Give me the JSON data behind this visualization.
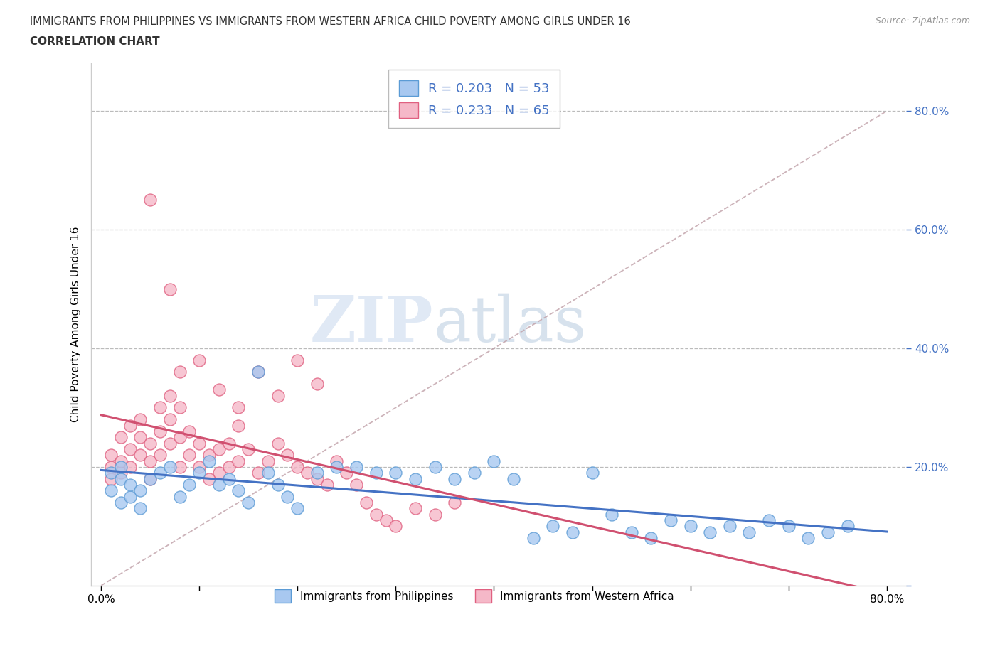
{
  "title_line1": "IMMIGRANTS FROM PHILIPPINES VS IMMIGRANTS FROM WESTERN AFRICA CHILD POVERTY AMONG GIRLS UNDER 16",
  "title_line2": "CORRELATION CHART",
  "source_text": "Source: ZipAtlas.com",
  "ylabel": "Child Poverty Among Girls Under 16",
  "xlim": [
    0.0,
    0.8
  ],
  "ylim": [
    0.0,
    0.88
  ],
  "color_blue": "#A8C8F0",
  "color_pink": "#F5B8C8",
  "color_blue_edge": "#5B9BD5",
  "color_pink_edge": "#E06080",
  "color_trend_blue": "#4472C4",
  "color_trend_pink": "#D05070",
  "color_diag": "#C0A0A8",
  "R_blue": 0.203,
  "N_blue": 53,
  "R_pink": 0.233,
  "N_pink": 65,
  "watermark_zip": "ZIP",
  "watermark_atlas": "atlas",
  "legend_label_blue": "Immigrants from Philippines",
  "legend_label_pink": "Immigrants from Western Africa",
  "blue_x": [
    0.01,
    0.01,
    0.02,
    0.02,
    0.02,
    0.03,
    0.03,
    0.04,
    0.04,
    0.05,
    0.06,
    0.07,
    0.08,
    0.09,
    0.1,
    0.11,
    0.12,
    0.13,
    0.14,
    0.15,
    0.16,
    0.17,
    0.18,
    0.19,
    0.2,
    0.22,
    0.24,
    0.26,
    0.28,
    0.3,
    0.32,
    0.34,
    0.36,
    0.38,
    0.4,
    0.42,
    0.44,
    0.46,
    0.48,
    0.5,
    0.52,
    0.54,
    0.56,
    0.58,
    0.6,
    0.62,
    0.64,
    0.66,
    0.68,
    0.7,
    0.72,
    0.74,
    0.76
  ],
  "blue_y": [
    0.16,
    0.19,
    0.14,
    0.18,
    0.2,
    0.15,
    0.17,
    0.13,
    0.16,
    0.18,
    0.19,
    0.2,
    0.15,
    0.17,
    0.19,
    0.21,
    0.17,
    0.18,
    0.16,
    0.14,
    0.36,
    0.19,
    0.17,
    0.15,
    0.13,
    0.19,
    0.2,
    0.2,
    0.19,
    0.19,
    0.18,
    0.2,
    0.18,
    0.19,
    0.21,
    0.18,
    0.08,
    0.1,
    0.09,
    0.19,
    0.12,
    0.09,
    0.08,
    0.11,
    0.1,
    0.09,
    0.1,
    0.09,
    0.11,
    0.1,
    0.08,
    0.09,
    0.1
  ],
  "pink_x": [
    0.01,
    0.01,
    0.01,
    0.02,
    0.02,
    0.02,
    0.03,
    0.03,
    0.03,
    0.04,
    0.04,
    0.04,
    0.05,
    0.05,
    0.05,
    0.06,
    0.06,
    0.06,
    0.07,
    0.07,
    0.07,
    0.08,
    0.08,
    0.08,
    0.09,
    0.09,
    0.1,
    0.1,
    0.11,
    0.11,
    0.12,
    0.12,
    0.13,
    0.13,
    0.14,
    0.14,
    0.15,
    0.16,
    0.17,
    0.18,
    0.19,
    0.2,
    0.21,
    0.22,
    0.23,
    0.24,
    0.25,
    0.26,
    0.27,
    0.28,
    0.29,
    0.3,
    0.32,
    0.34,
    0.36,
    0.05,
    0.07,
    0.2,
    0.22,
    0.16,
    0.1,
    0.12,
    0.18,
    0.08,
    0.14
  ],
  "pink_y": [
    0.2,
    0.22,
    0.18,
    0.19,
    0.21,
    0.25,
    0.2,
    0.23,
    0.27,
    0.22,
    0.25,
    0.28,
    0.21,
    0.24,
    0.18,
    0.22,
    0.26,
    0.3,
    0.24,
    0.28,
    0.32,
    0.2,
    0.25,
    0.3,
    0.22,
    0.26,
    0.2,
    0.24,
    0.18,
    0.22,
    0.19,
    0.23,
    0.2,
    0.24,
    0.21,
    0.27,
    0.23,
    0.19,
    0.21,
    0.24,
    0.22,
    0.2,
    0.19,
    0.18,
    0.17,
    0.21,
    0.19,
    0.17,
    0.14,
    0.12,
    0.11,
    0.1,
    0.13,
    0.12,
    0.14,
    0.65,
    0.5,
    0.38,
    0.34,
    0.36,
    0.38,
    0.33,
    0.32,
    0.36,
    0.3
  ]
}
